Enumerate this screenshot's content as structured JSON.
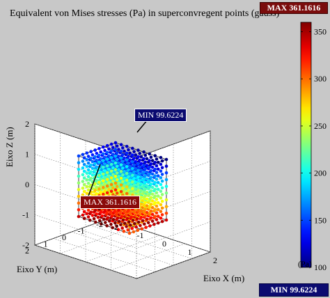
{
  "chart_data": {
    "type": "scatter",
    "title": "Equivalent von Mises stresses (Pa) in superconvregent points (gauss)",
    "xlabel": "Eixo X (m)",
    "ylabel": "Eixo Y (m)",
    "zlabel": "Eixo Z (m)",
    "xlim": [
      -2,
      2
    ],
    "ylim": [
      -2,
      2
    ],
    "zlim": [
      -2,
      2
    ],
    "x_ticks": [
      "-2",
      "-1",
      "0",
      "1",
      "2"
    ],
    "y_ticks": [
      "-2",
      "-1",
      "0",
      "1",
      "2"
    ],
    "z_ticks": [
      "-2",
      "-1",
      "0",
      "1",
      "2"
    ],
    "grid": true,
    "colormap": "jet",
    "colorbar": {
      "label": "(Pa)",
      "min": 100,
      "max": 360,
      "ticks": [
        "100",
        "150",
        "200",
        "250",
        "300",
        "350"
      ]
    },
    "points": {
      "n_per_axis": 10,
      "range": [
        -1,
        1
      ],
      "min_value": 99.6224,
      "max_value": 361.1616
    },
    "annotations": {
      "max_label": "MAX 361.1616",
      "min_label": "MIN 99.6224"
    }
  }
}
